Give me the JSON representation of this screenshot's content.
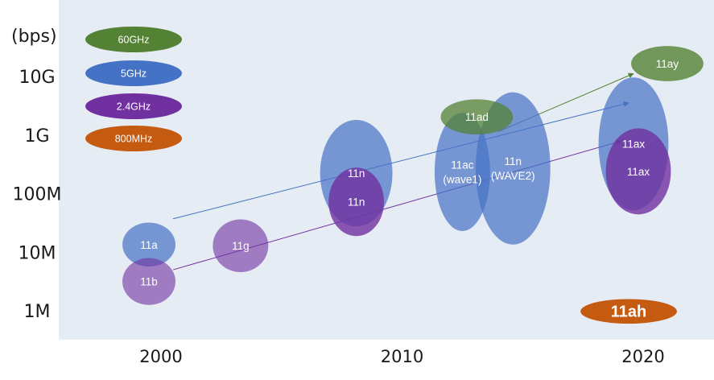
{
  "chart_data": {
    "type": "scatter",
    "title": "",
    "xlabel": "",
    "ylabel": "(bps)",
    "x_ticks": [
      "2000",
      "2010",
      "2020"
    ],
    "y_ticks": [
      "1M",
      "10M",
      "100M",
      "1G",
      "10G"
    ],
    "xlim": [
      1996,
      2024
    ],
    "ylim_log10_bps": [
      5.6,
      11.1
    ],
    "legend": [
      {
        "label": "60GHz",
        "color": "#548235"
      },
      {
        "label": "5GHz",
        "color": "#4472c4"
      },
      {
        "label": "2.4GHz",
        "color": "#7030a0"
      },
      {
        "label": "800MHz",
        "color": "#c55a11"
      }
    ],
    "standards": [
      {
        "label": "11a",
        "band": "5GHz",
        "year": 1999.5,
        "rate_log10": 7.13,
        "year_span": 2.2,
        "rate_span": 0.75,
        "opacity": 0.7
      },
      {
        "label": "11b",
        "band": "2.4GHz",
        "year": 1999.5,
        "rate_log10": 6.5,
        "year_span": 2.2,
        "rate_span": 0.8,
        "opacity": 0.6
      },
      {
        "label": "11g",
        "band": "2.4GHz",
        "year": 2003.3,
        "rate_log10": 7.11,
        "year_span": 2.3,
        "rate_span": 0.9,
        "opacity": 0.6
      },
      {
        "label": "11n",
        "band": "5GHz",
        "year": 2008.1,
        "rate_log10": 8.35,
        "year_span": 3.0,
        "rate_span": 1.82,
        "opacity": 0.7
      },
      {
        "label": "11n",
        "band": "2.4GHz",
        "year": 2008.1,
        "rate_log10": 7.86,
        "year_span": 2.3,
        "rate_span": 1.17,
        "opacity": 0.8
      },
      {
        "label": "11ac\n(wave1)",
        "band": "5GHz",
        "year": 2012.5,
        "rate_log10": 8.37,
        "year_span": 2.3,
        "rate_span": 2.02,
        "opacity": 0.7
      },
      {
        "label": "11n\n(WAVE2)",
        "band": "5GHz",
        "year": 2014.6,
        "rate_log10": 8.43,
        "year_span": 3.1,
        "rate_span": 2.6,
        "opacity": 0.7
      },
      {
        "label": "11ad",
        "band": "60GHz",
        "year": 2013.1,
        "rate_log10": 9.31,
        "year_span": 3.0,
        "rate_span": 0.6,
        "opacity": 0.75
      },
      {
        "label": "11ax",
        "band": "5GHz",
        "year": 2019.6,
        "rate_log10": 8.85,
        "year_span": 2.9,
        "rate_span": 2.27,
        "opacity": 0.7
      },
      {
        "label": "11ax",
        "band": "2.4GHz",
        "year": 2019.8,
        "rate_log10": 8.38,
        "year_span": 2.7,
        "rate_span": 1.47,
        "opacity": 0.8
      },
      {
        "label": "11ay",
        "band": "60GHz",
        "year": 2021.0,
        "rate_log10": 10.22,
        "year_span": 3.0,
        "rate_span": 0.6,
        "opacity": 0.8
      },
      {
        "label": "11ah",
        "band": "800MHz",
        "year": 2019.4,
        "rate_log10": 5.99,
        "year_span": 4.0,
        "rate_span": 0.42,
        "opacity": 1.0
      }
    ],
    "trend_arrows": [
      {
        "band": "60GHz",
        "from": [
          2014.0,
          9.06
        ],
        "to": [
          2019.6,
          10.05
        ]
      },
      {
        "band": "5GHz",
        "from": [
          2000.5,
          7.57
        ],
        "to": [
          2019.4,
          9.55
        ]
      },
      {
        "band": "2.4GHz",
        "from": [
          2000.5,
          6.7
        ],
        "to": [
          2019.1,
          8.9
        ]
      }
    ]
  }
}
